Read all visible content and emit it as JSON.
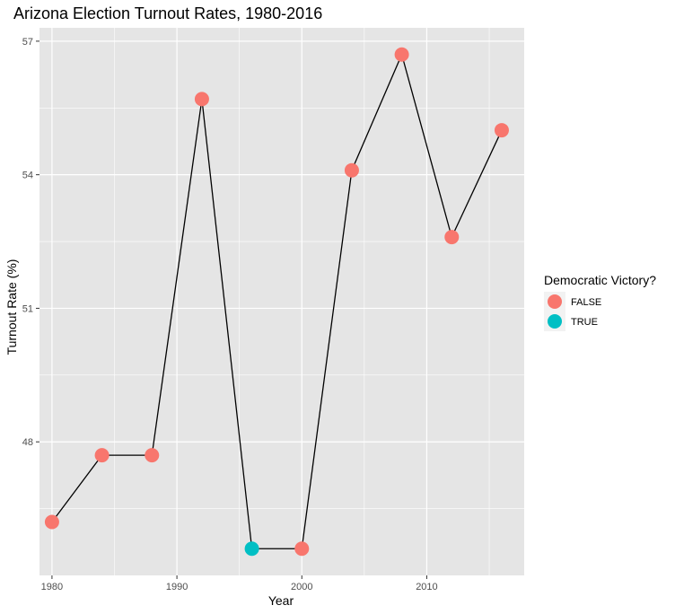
{
  "chart_data": {
    "type": "line",
    "title": "Arizona Election Turnout Rates, 1980-2016",
    "xlabel": "Year",
    "ylabel": "Turnout Rate (%)",
    "xlim": [
      1979.0,
      2017.8
    ],
    "ylim": [
      45.0,
      57.3
    ],
    "x_ticks": [
      1980,
      1990,
      2000,
      2010
    ],
    "y_ticks": [
      48,
      51,
      54,
      57
    ],
    "grid": true,
    "legend": {
      "title": "Democratic Victory?",
      "position": "right",
      "entries": [
        {
          "label": "FALSE",
          "color": "#F8766D"
        },
        {
          "label": "TRUE",
          "color": "#00BFC4"
        }
      ]
    },
    "series": [
      {
        "points": [
          {
            "x": 1980,
            "y": 46.2,
            "democratic_victory": "FALSE"
          },
          {
            "x": 1984,
            "y": 47.7,
            "democratic_victory": "FALSE"
          },
          {
            "x": 1988,
            "y": 47.7,
            "democratic_victory": "FALSE"
          },
          {
            "x": 1992,
            "y": 55.7,
            "democratic_victory": "FALSE"
          },
          {
            "x": 1996,
            "y": 45.6,
            "democratic_victory": "TRUE"
          },
          {
            "x": 2000,
            "y": 45.6,
            "democratic_victory": "FALSE"
          },
          {
            "x": 2004,
            "y": 54.1,
            "democratic_victory": "FALSE"
          },
          {
            "x": 2008,
            "y": 56.7,
            "democratic_victory": "FALSE"
          },
          {
            "x": 2012,
            "y": 52.6,
            "democratic_victory": "FALSE"
          },
          {
            "x": 2016,
            "y": 55.0,
            "democratic_victory": "FALSE"
          }
        ]
      }
    ],
    "colors": {
      "panel_background": "#E5E5E5",
      "grid_major": "#FFFFFF",
      "line": "#000000"
    }
  }
}
